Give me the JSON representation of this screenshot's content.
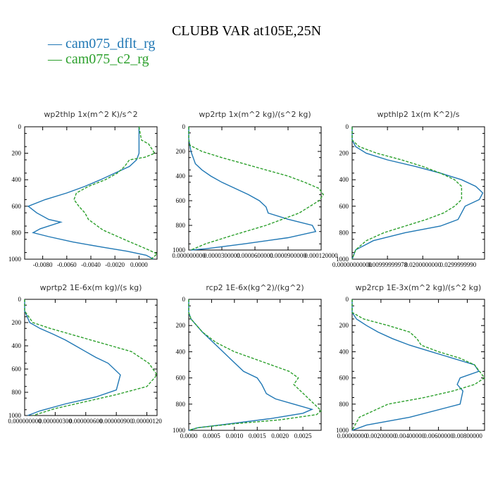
{
  "figure": {
    "title": "CLUBB VAR at105E,25N"
  },
  "legend": [
    {
      "label": "— cam075_dflt_rg",
      "color": "#1f77b4"
    },
    {
      "label": "— cam075_c2_rg",
      "color": "#2ca02c"
    }
  ],
  "colors": {
    "dflt": "#1f77b4",
    "c2": "#2ca02c"
  },
  "chart_data": [
    {
      "type": "line",
      "title": "wp2thlp  1x(m^2 K)/s^2",
      "xlim": [
        -0.0095,
        0.0015
      ],
      "ylim": [
        1000,
        0
      ],
      "xticks": [
        -0.008,
        -0.006,
        -0.004,
        -0.002,
        0.0
      ],
      "xtick_labels": [
        "-0.0080",
        "-0.0060",
        "-0.0040",
        "-0.0020",
        "0.0000"
      ],
      "yticks": [
        0,
        200,
        400,
        600,
        800,
        1000
      ],
      "ytick_labels": [
        "0",
        "200",
        "400",
        "600",
        "800",
        "1000"
      ],
      "series": [
        {
          "name": "cam075_dflt_rg",
          "color": "#1f77b4",
          "x": [
            0.0,
            0.0,
            0.0,
            0.0,
            -0.0002,
            -0.0008,
            -0.002,
            -0.0032,
            -0.0045,
            -0.006,
            -0.0078,
            -0.0092,
            -0.0085,
            -0.0075,
            -0.0065,
            -0.0082,
            -0.0088,
            -0.0075,
            -0.0055,
            -0.003,
            -0.001,
            0.0006,
            0.0012
          ],
          "y": [
            0,
            100,
            150,
            200,
            250,
            300,
            350,
            400,
            450,
            500,
            550,
            600,
            650,
            700,
            720,
            770,
            800,
            830,
            870,
            910,
            940,
            970,
            1000
          ]
        },
        {
          "name": "cam075_c2_rg",
          "color": "#2ca02c",
          "x": [
            0.0,
            0.0002,
            0.0008,
            0.0013,
            0.0005,
            -0.0008,
            -0.0012,
            -0.0018,
            -0.0028,
            -0.0042,
            -0.0052,
            -0.0054,
            -0.005,
            -0.0045,
            -0.0042,
            -0.003,
            -0.001,
            0.0008,
            0.0015,
            0.001
          ],
          "y": [
            0,
            100,
            130,
            200,
            230,
            250,
            300,
            350,
            400,
            450,
            500,
            550,
            600,
            650,
            700,
            780,
            860,
            930,
            960,
            1000
          ]
        }
      ]
    },
    {
      "type": "line",
      "title": "wp2rtp  1x(m^2 kg)/(s^2 kg)",
      "xlim": [
        0.0,
        0.00012
      ],
      "ylim": [
        1000,
        0
      ],
      "xticks": [
        0.0,
        3e-05,
        6e-05,
        9e-05,
        0.00012
      ],
      "xtick_labels": [
        "0.000000000",
        "0.0000300000",
        "0.0000600000",
        "0.0000900000",
        "0.000120000"
      ],
      "yticks": [
        0,
        200,
        400,
        600,
        800,
        1000
      ],
      "ytick_labels": [
        "0",
        "200",
        "400",
        "600",
        "800",
        "1000"
      ],
      "series": [
        {
          "name": "cam075_dflt_rg",
          "color": "#1f77b4",
          "x": [
            0.0,
            0.0,
            2e-06,
            6e-06,
            1.2e-05,
            2e-05,
            3e-05,
            4.2e-05,
            5.4e-05,
            6.4e-05,
            7e-05,
            7.2e-05,
            9e-05,
            0.000112,
            0.000115,
            9e-05,
            5e-05,
            1.5e-05,
            2e-06
          ],
          "y": [
            0,
            100,
            200,
            300,
            350,
            400,
            450,
            500,
            550,
            600,
            650,
            700,
            750,
            800,
            850,
            900,
            950,
            990,
            1000
          ]
        },
        {
          "name": "cam075_c2_rg",
          "color": "#2ca02c",
          "x": [
            0.0,
            0.0,
            1e-06,
            1.2e-05,
            3e-05,
            5e-05,
            7e-05,
            9e-05,
            0.000105,
            0.000118,
            0.000122,
            0.000118,
            0.0001,
            7e-05,
            4e-05,
            1.5e-05,
            2e-06
          ],
          "y": [
            0,
            100,
            150,
            200,
            250,
            300,
            350,
            400,
            450,
            500,
            550,
            600,
            700,
            800,
            880,
            950,
            1000
          ]
        }
      ]
    },
    {
      "type": "line",
      "title": "wpthlp2  1x(m K^2)/s",
      "xlim": [
        0.0,
        0.0375
      ],
      "ylim": [
        1000,
        0
      ],
      "xticks": [
        0.0,
        0.01,
        0.02,
        0.03
      ],
      "xtick_labels": [
        "0.00000000000",
        "0.00999999978",
        "0.0200000000",
        "0.0299999990"
      ],
      "yticks": [
        0,
        200,
        400,
        600,
        800,
        1000
      ],
      "ytick_labels": [
        "0",
        "200",
        "400",
        "600",
        "800",
        "1000"
      ],
      "series": [
        {
          "name": "cam075_dflt_rg",
          "color": "#1f77b4",
          "x": [
            0.0,
            0.0,
            0.001,
            0.004,
            0.01,
            0.018,
            0.025,
            0.031,
            0.035,
            0.037,
            0.036,
            0.032,
            0.031,
            0.03,
            0.025,
            0.015,
            0.006,
            0.001,
            0.0
          ],
          "y": [
            0,
            100,
            150,
            200,
            250,
            300,
            350,
            400,
            450,
            500,
            550,
            600,
            650,
            700,
            750,
            800,
            860,
            930,
            1000
          ]
        },
        {
          "name": "cam075_c2_rg",
          "color": "#2ca02c",
          "x": [
            0.0,
            0.0,
            0.002,
            0.007,
            0.014,
            0.02,
            0.025,
            0.029,
            0.031,
            0.031,
            0.029,
            0.026,
            0.021,
            0.015,
            0.009,
            0.004,
            0.001,
            0.0
          ],
          "y": [
            0,
            100,
            150,
            200,
            250,
            300,
            350,
            400,
            450,
            550,
            600,
            650,
            700,
            750,
            800,
            860,
            930,
            1000
          ]
        }
      ]
    },
    {
      "type": "line",
      "title": "wprtp2  1E-6x(m kg)/(s kg)",
      "xlim": [
        0.0,
        1.3e-06
      ],
      "ylim": [
        1000,
        0
      ],
      "xticks": [
        0.0,
        3e-07,
        6e-07,
        9e-07,
        1.2e-06
      ],
      "xtick_labels": [
        "0.000000000",
        "0.000000300",
        "0.000000600",
        "0.000000900",
        "0.00000120"
      ],
      "yticks": [
        0,
        200,
        400,
        600,
        800,
        1000
      ],
      "ytick_labels": [
        "0",
        "200",
        "400",
        "600",
        "800",
        "1000"
      ],
      "series": [
        {
          "name": "cam075_dflt_rg",
          "color": "#1f77b4",
          "x": [
            0.0,
            0.0,
            5e-08,
            1.5e-07,
            2.8e-07,
            4e-07,
            5e-07,
            6e-07,
            7e-07,
            8.2e-07,
            9.4e-07,
            9e-07,
            7e-07,
            4e-07,
            1.5e-07,
            3e-08
          ],
          "y": [
            0,
            100,
            200,
            250,
            300,
            350,
            400,
            450,
            500,
            550,
            650,
            780,
            840,
            900,
            960,
            1000
          ]
        },
        {
          "name": "cam075_c2_rg",
          "color": "#2ca02c",
          "x": [
            0.0,
            0.0,
            8e-08,
            2.5e-07,
            4.5e-07,
            6.5e-07,
            8.5e-07,
            1.05e-06,
            1.22e-06,
            1.3e-06,
            1.2e-06,
            9e-07,
            6e-07,
            3e-07,
            8e-08
          ],
          "y": [
            0,
            100,
            200,
            250,
            300,
            350,
            400,
            450,
            550,
            650,
            750,
            820,
            880,
            940,
            1000
          ]
        }
      ]
    },
    {
      "type": "line",
      "title": "rcp2  1E-6x(kg^2)/(kg^2)",
      "xlim": [
        0.0,
        0.0029
      ],
      "ylim": [
        1000,
        0
      ],
      "xticks": [
        0.0,
        0.0005,
        0.001,
        0.0015,
        0.002,
        0.0025
      ],
      "xtick_labels": [
        "0.0000",
        "0.0005",
        "0.0010",
        "0.0015",
        "0.0020",
        "0.0025"
      ],
      "yticks": [
        0,
        200,
        400,
        600,
        800,
        1000
      ],
      "ytick_labels": [
        "0",
        "200",
        "400",
        "600",
        "800",
        "1000"
      ],
      "series": [
        {
          "name": "cam075_dflt_rg",
          "color": "#1f77b4",
          "x": [
            0.0,
            0.0,
            5e-05,
            0.0003,
            0.0006,
            0.0009,
            0.0012,
            0.0015,
            0.0016,
            0.0017,
            0.0019,
            0.0023,
            0.0027,
            0.0025,
            0.0018,
            0.0009,
            0.0002,
            0.0
          ],
          "y": [
            0,
            100,
            150,
            250,
            350,
            450,
            550,
            600,
            650,
            720,
            760,
            800,
            840,
            870,
            910,
            950,
            980,
            1000
          ]
        },
        {
          "name": "cam075_c2_rg",
          "color": "#2ca02c",
          "x": [
            0.0,
            0.0,
            5e-05,
            0.0003,
            0.0006,
            0.001,
            0.0014,
            0.0018,
            0.0022,
            0.0024,
            0.0023,
            0.0026,
            0.0029,
            0.0028,
            0.002,
            0.001,
            0.0002,
            0.0
          ],
          "y": [
            0,
            100,
            150,
            250,
            330,
            400,
            450,
            500,
            550,
            600,
            650,
            750,
            850,
            880,
            920,
            950,
            980,
            1000
          ]
        }
      ]
    },
    {
      "type": "line",
      "title": "wp2rcp  1E-3x(m^2 kg)/(s^2 kg)",
      "xlim": [
        0.0,
        0.0092
      ],
      "ylim": [
        1000,
        0
      ],
      "xticks": [
        0.0,
        0.002,
        0.004,
        0.006,
        0.008
      ],
      "xtick_labels": [
        "0.00000000",
        "0.00200000",
        "0.00400000",
        "0.00600000",
        "0.00800000"
      ],
      "yticks": [
        0,
        200,
        400,
        600,
        800,
        1000
      ],
      "ytick_labels": [
        "0",
        "200",
        "400",
        "600",
        "800",
        "1000"
      ],
      "series": [
        {
          "name": "cam075_dflt_rg",
          "color": "#1f77b4",
          "x": [
            0.0,
            0.0,
            0.0003,
            0.001,
            0.0018,
            0.0028,
            0.004,
            0.0055,
            0.007,
            0.0085,
            0.0088,
            0.0075,
            0.0073,
            0.0077,
            0.0075,
            0.004,
            0.001,
            0.0
          ],
          "y": [
            0,
            100,
            150,
            200,
            250,
            300,
            350,
            400,
            450,
            500,
            550,
            600,
            650,
            700,
            800,
            900,
            960,
            1000
          ]
        },
        {
          "name": "cam075_c2_rg",
          "color": "#2ca02c",
          "x": [
            0.0,
            0.0,
            0.0008,
            0.0025,
            0.004,
            0.0045,
            0.0048,
            0.006,
            0.0075,
            0.0085,
            0.0092,
            0.0085,
            0.007,
            0.005,
            0.0025,
            0.0005,
            0.0
          ],
          "y": [
            0,
            100,
            150,
            200,
            250,
            300,
            350,
            400,
            450,
            500,
            600,
            650,
            700,
            750,
            800,
            900,
            1000
          ]
        }
      ]
    }
  ]
}
